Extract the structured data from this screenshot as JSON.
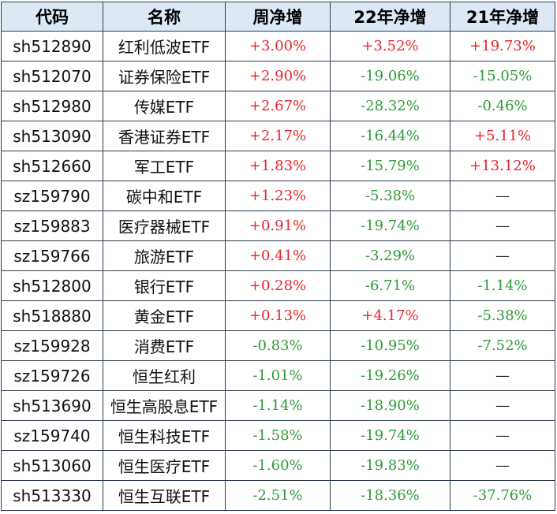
{
  "headers": [
    "代码",
    "名称",
    "周净增",
    "22年净增",
    "21年净增"
  ],
  "colors": {
    "positive": "#e8242a",
    "negative": "#2e9a3a",
    "header_bg": "#dce9f4",
    "border": "#2f3b4c"
  },
  "rows": [
    {
      "code": "sh512890",
      "name": "红利低波ETF",
      "week": "+3.00%",
      "y22": "+3.52%",
      "y21": "+19.73%"
    },
    {
      "code": "sh512070",
      "name": "证券保险ETF",
      "week": "+2.90%",
      "y22": "-19.06%",
      "y21": "-15.05%"
    },
    {
      "code": "sh512980",
      "name": "传媒ETF",
      "week": "+2.67%",
      "y22": "-28.32%",
      "y21": "-0.46%"
    },
    {
      "code": "sh513090",
      "name": "香港证券ETF",
      "week": "+2.17%",
      "y22": "-16.44%",
      "y21": "+5.11%"
    },
    {
      "code": "sh512660",
      "name": "军工ETF",
      "week": "+1.83%",
      "y22": "-15.79%",
      "y21": "+13.12%"
    },
    {
      "code": "sz159790",
      "name": "碳中和ETF",
      "week": "+1.23%",
      "y22": "-5.38%",
      "y21": "—"
    },
    {
      "code": "sz159883",
      "name": "医疗器械ETF",
      "week": "+0.91%",
      "y22": "-19.74%",
      "y21": "—"
    },
    {
      "code": "sz159766",
      "name": "旅游ETF",
      "week": "+0.41%",
      "y22": "-3.29%",
      "y21": "—"
    },
    {
      "code": "sh512800",
      "name": "银行ETF",
      "week": "+0.28%",
      "y22": "-6.71%",
      "y21": "-1.14%"
    },
    {
      "code": "sh518880",
      "name": "黄金ETF",
      "week": "+0.13%",
      "y22": "+4.17%",
      "y21": "-5.38%"
    },
    {
      "code": "sz159928",
      "name": "消费ETF",
      "week": "-0.83%",
      "y22": "-10.95%",
      "y21": "-7.52%"
    },
    {
      "code": "sz159726",
      "name": "恒生红利",
      "week": "-1.01%",
      "y22": "-19.26%",
      "y21": "—"
    },
    {
      "code": "sh513690",
      "name": "恒生高股息ETF",
      "week": "-1.14%",
      "y22": "-18.90%",
      "y21": "—"
    },
    {
      "code": "sz159740",
      "name": "恒生科技ETF",
      "week": "-1.58%",
      "y22": "-19.74%",
      "y21": "—"
    },
    {
      "code": "sh513060",
      "name": "恒生医疗ETF",
      "week": "-1.60%",
      "y22": "-19.83%",
      "y21": "—"
    },
    {
      "code": "sh513330",
      "name": "恒生互联ETF",
      "week": "-2.51%",
      "y22": "-18.36%",
      "y21": "-37.76%"
    }
  ]
}
